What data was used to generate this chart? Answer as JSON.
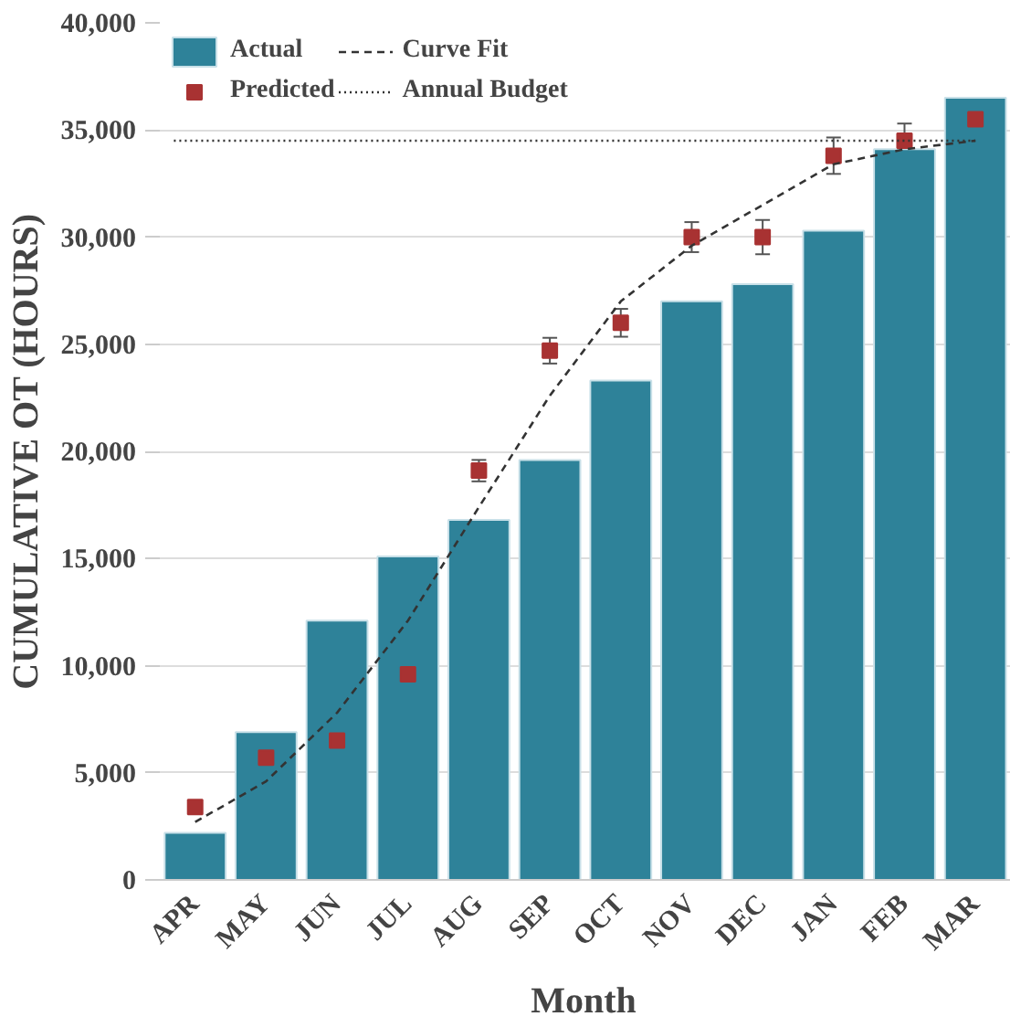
{
  "chart_data": {
    "type": "bar",
    "xlabel": "Month",
    "ylabel": "CUMULATIVE OT (HOURS)",
    "categories": [
      "APR",
      "MAY",
      "JUN",
      "JUL",
      "AUG",
      "SEP",
      "OCT",
      "NOV",
      "DEC",
      "JAN",
      "FEB",
      "MAR"
    ],
    "series": [
      {
        "name": "Actual",
        "color": "#2e8299",
        "values": [
          2200,
          6900,
          12100,
          15100,
          16800,
          19600,
          23300,
          27000,
          27800,
          30300,
          34100,
          36500
        ]
      },
      {
        "name": "Predicted",
        "type": "scatter",
        "marker": "square",
        "color": "#a83232",
        "values": [
          3400,
          5700,
          6500,
          9600,
          19100,
          24700,
          26000,
          30000,
          30000,
          33800,
          34500,
          35500
        ],
        "errors": [
          null,
          null,
          null,
          100,
          500,
          600,
          650,
          700,
          800,
          850,
          800,
          900
        ]
      },
      {
        "name": "Curve Fit",
        "type": "line",
        "line_style": "dashed",
        "color": "#333333",
        "values": [
          2700,
          4600,
          7800,
          12100,
          17400,
          22600,
          27000,
          29600,
          31500,
          33400,
          34100,
          34500
        ]
      }
    ],
    "ref_lines": [
      {
        "axis": "y",
        "value": 34500,
        "label": "Annual Budget",
        "line_style": "dotted",
        "color": "#333333"
      }
    ],
    "ylim": [
      0,
      40000
    ],
    "yticks": [
      {
        "value": 0,
        "label": "0"
      },
      {
        "value": 5000,
        "label": "5,000"
      },
      {
        "value": 10000,
        "label": "10,000"
      },
      {
        "value": 15000,
        "label": "15,000"
      },
      {
        "value": 20000,
        "label": "20,000"
      },
      {
        "value": 25000,
        "label": "25,000"
      },
      {
        "value": 30000,
        "label": "30,000"
      },
      {
        "value": 35000,
        "label": "35,000"
      },
      {
        "value": 40000,
        "label": "40,000"
      }
    ],
    "grid": "y",
    "legend": "top left"
  }
}
